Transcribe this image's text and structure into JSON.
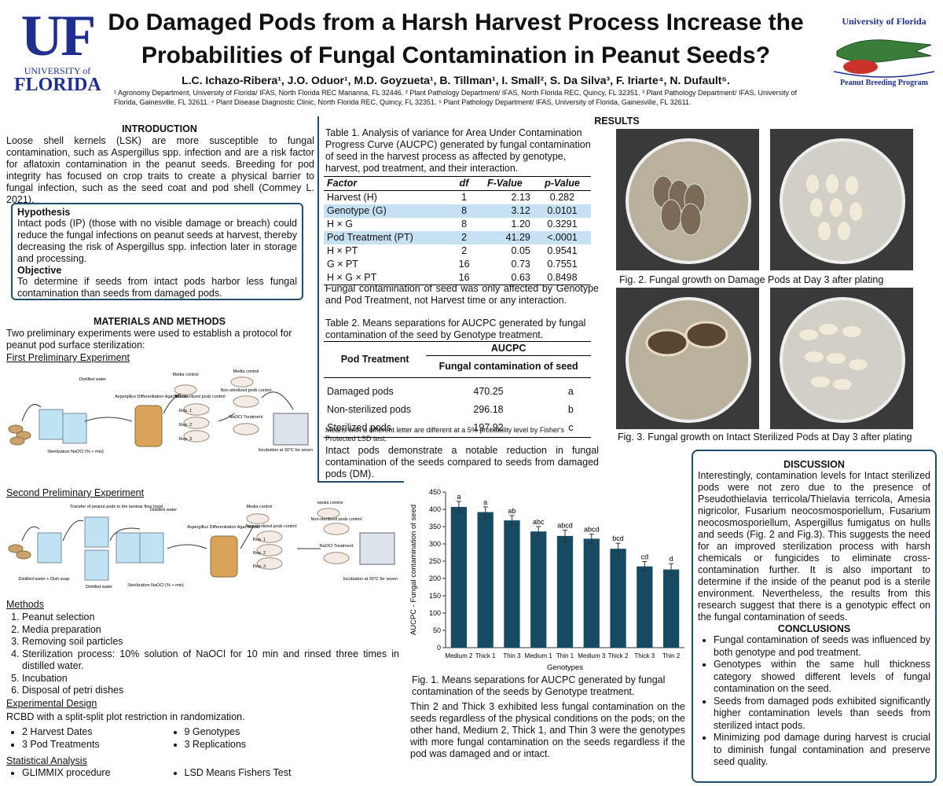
{
  "header": {
    "title_lines": [
      "Do Damaged Pods from a Harsh Harvest Process Increase the",
      "Probabilities of Fungal Contamination in Peanut Seeds?"
    ],
    "authors": "L.C. Ichazo-Ribera¹, J.O. Oduor¹, M.D. Goyzueta¹, B. Tillman¹, I. Small², S. Da Silva³, F. Iriarte⁴, N. Dufault⁵.",
    "affiliations": "¹ Agronomy Department, University of Florida/ IFAS, North Florida REC Marianna, FL 32446. ² Plant Pathology Department/ IFAS, North Florida REC, Quincy, FL 32351. ³ Plant Pathology Department/ IFAS, University of Florida, Gainesville, FL 32611. ⁴ Plant Disease Diagnostic Clinic, North Florida REC, Quincy, FL 32351. ⁵ Plant Pathology Department/ IFAS, University of Florida, Gainesville, FL 32611.",
    "logo_left": {
      "mark": "UF",
      "line1": "UNIVERSITY of",
      "line2": "FLORIDA"
    },
    "logo_right": {
      "line1": "University of Florida",
      "line2": "Peanut Breeding Program"
    }
  },
  "introduction": {
    "heading": "INTRODUCTION",
    "text": "Loose shell kernels (LSK) are more susceptible to fungal contamination, such as Aspergillus spp. infection and are a risk factor for aflatoxin contamination in the peanut seeds. Breeding for pod integrity has focused on crop traits to create a physical barrier to fungal infection, such as the seed coat and pod shell (Commey L. 2021).",
    "hypothesis_heading": "Hypothesis",
    "hypothesis": "Intact pods (IP) (those with no visible damage or breach) could reduce the fungal infections on peanut seeds at harvest, thereby decreasing the risk of Aspergillus spp. infection later in storage and processing.",
    "objective_heading": "Objective",
    "objective": "To determine if seeds from intact pods harbor less fungal contamination than seeds from damaged pods."
  },
  "materials": {
    "heading": "MATERIALS AND METHODS",
    "text": "Two preliminary experiments were used to establish a protocol for peanut pod surface sterilization:",
    "first_heading": "First Preliminary Experiment",
    "first_labels": [
      "Distilled water",
      "Sterilization NaOCl (% + min)",
      "Aspergillus Differentiation Agar Media",
      "Media control",
      "Non-sterilized pods control",
      "Rep. 1",
      "Rep. 2",
      "Rep. 3",
      "NaOCl Treatment",
      "Media control",
      "Non-sterilized pods control",
      "Incubation at 30°C for seven days"
    ],
    "second_heading": "Second Preliminary Experiment",
    "second_labels": [
      "Transfer of peanut pods to the laminar flow hood",
      "Distilled water",
      "Distilled water + Dish soap",
      "Distilled water",
      "Sterilization NaOCl (% + min)",
      "Aspergillus Differentiation Agar Media",
      "Media control",
      "Non-sterilized pods control",
      "Rep. 1",
      "Rep. 2",
      "Rep. 3",
      "Media control",
      "Non-sterilized pods control",
      "NaOCl Treatment",
      "Incubation at 30°C for seven days"
    ],
    "methods_heading": "Methods",
    "methods": [
      "Peanut selection",
      "Media preparation",
      "Removing soil particles",
      "Sterilization process: 10% solution of NaOCl for 10 min and rinsed three times in distilled water.",
      "Incubation",
      "Disposal of petri dishes"
    ],
    "design_heading": "Experimental Design",
    "design_text": "RCBD with a split-split plot restriction in randomization.",
    "design_items": [
      "2 Harvest Dates",
      "3 Pod Treatments",
      "9 Genotypes",
      "3 Replications"
    ],
    "stats_heading": "Statistical Analysis",
    "stats_items": [
      "GLIMMIX procedure",
      "LSD Means Fishers Test"
    ]
  },
  "table1": {
    "caption": "Table 1.  Analysis of variance for Area Under Contamination Progress Curve (AUCPC) generated by fungal contamination of seed in the harvest process as affected by genotype, harvest, pod treatment, and their interaction.",
    "columns": [
      "Factor",
      "df",
      "F-Value",
      "p-Value"
    ],
    "rows": [
      [
        "Harvest (H)",
        "1",
        "2.13",
        "0.282"
      ],
      [
        "Genotype (G)",
        "8",
        "3.12",
        "0.0101"
      ],
      [
        "H × G",
        "8",
        "1.20",
        "0.3291"
      ],
      [
        "Pod Treatment (PT)",
        "2",
        "41.29",
        "<.0001"
      ],
      [
        "H × PT",
        "2",
        "0.05",
        "0.9541"
      ],
      [
        "G × PT",
        "16",
        "0.73",
        "0.7551"
      ],
      [
        "H × G × PT",
        "16",
        "0.63",
        "0.8498"
      ]
    ],
    "highlight_rows": [
      1,
      3
    ],
    "highlight_color": "#c6e1f2",
    "after": "Fungal contamination of seed was only affected by Genotype and Pod Treatment, not Harvest time or any interaction."
  },
  "table2": {
    "caption": "Table 2. Means separations for AUCPC generated by fungal contamination of the seed by Genotype treatment.",
    "col1": "Pod Treatment",
    "group": "AUCPC",
    "subhead": "Fungal contamination of seed",
    "rows": [
      [
        "Damaged pods",
        "470.25",
        "a"
      ],
      [
        "Non-sterilized pods",
        "296.18",
        "b"
      ],
      [
        "Sterilized pods",
        "197.92",
        "c"
      ]
    ],
    "note": "Means with a different letter are different at a 5% probability level by Fisher's Protected LSD test.",
    "after": "Intact pods demonstrate a notable reduction in fungal contamination of the seeds compared to seeds from damaged pods (DM)."
  },
  "chart_data": {
    "type": "bar",
    "categories": [
      "Medium 2",
      "Thick 1",
      "Thin 3",
      "Medium 1",
      "Thin 1",
      "Medium 3",
      "Thick 2",
      "Thick 3",
      "Thin 2"
    ],
    "values": [
      407,
      392,
      368,
      336,
      323,
      315,
      286,
      235,
      226
    ],
    "errors": [
      16,
      15,
      14,
      14,
      17,
      13,
      16,
      14,
      17
    ],
    "letters": [
      "a",
      "a",
      "ab",
      "abc",
      "abcd",
      "abcd",
      "bcd",
      "cd",
      "d"
    ],
    "color": "#174a63",
    "ylim": [
      0,
      450
    ],
    "yticks": [
      0,
      50,
      100,
      150,
      200,
      250,
      300,
      350,
      400,
      450
    ],
    "y_label": "AUCPC - Fungal contamination of seed",
    "x_label": "Genotypes",
    "grid": false
  },
  "figure1": {
    "caption": "Fig. 1. Means separations for AUCPC generated by fungal contamination of the seeds by Genotype treatment.",
    "after": "Thin 2 and Thick 3 exhibited less fungal contamination on the seeds regardless of the physical conditions on the pods; on the other hand, Medium 2, Thick 1, and Thin 3 were the genotypes with more fungal contamination on the seeds regardless if the pod was damaged and or intact."
  },
  "results": {
    "heading": "RESULTS",
    "fig2_caption": "Fig. 2. Fungal growth on Damage Pods at Day 3 after plating",
    "fig3_caption": "Fig. 3. Fungal growth on Intact Sterilized Pods at Day 3 after plating"
  },
  "discussion": {
    "heading": "DISCUSSION",
    "text": "Interestingly, contamination levels for Intact sterilized pods were not zero due to the presence of Pseudothielavia terricola/Thielavia terricola, Amesia nigricolor, Fusarium neocosmosporiellum, Fusarium neocosmosporiellum, Aspergillus fumigatus on hulls and seeds (Fig. 2 and Fig.3). This suggests the need for an improved sterilization process with harsh chemicals or fungicides to eliminate cross-contamination further. It is also important to determine if the inside of the peanut pod is a sterile environment. Nevertheless, the results from this research suggest that there is a genotypic effect on the fungal contamination of seeds.",
    "conclusions_heading": "CONCLUSIONS",
    "conclusions": [
      "Fungal contamination of seeds was influenced by both genotype and pod treatment.",
      "Genotypes within the same hull thickness category showed different levels of fungal contamination on the seed.",
      "Seeds from damaged pods exhibited significantly higher contamination levels than seeds from sterilized intact pods.",
      "Minimizing pod damage during harvest is crucial to diminish fungal contamination and preserve seed quality."
    ]
  }
}
